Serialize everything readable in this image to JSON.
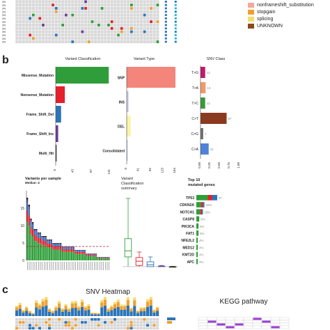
{
  "panels": {
    "a": {
      "letter": ""
    },
    "b": {
      "letter": "b"
    },
    "c": {
      "letter": "c"
    }
  },
  "legend_top": [
    {
      "label": "nonframeshift_substitution",
      "color": "#f4a6a0"
    },
    {
      "label": "stopgain",
      "color": "#f0a030"
    },
    {
      "label": "splicing",
      "color": "#f5dc6e"
    },
    {
      "label": "UNKNOWN",
      "color": "#8b4a1c"
    }
  ],
  "chart_data": [
    {
      "type": "bar",
      "title": "Variant Classification",
      "categories": [
        "Missense_Mutation",
        "Nonsense_Mutation",
        "Frame_Shift_Del",
        "Frame_Shift_Ins",
        "Multi_Hit"
      ],
      "values": [
        128,
        22,
        13,
        6,
        2
      ],
      "colors": [
        "#2f9e3a",
        "#e5202a",
        "#2b74b8",
        "#6d3c96",
        "#111111"
      ],
      "xticks": [
        "0",
        "43",
        "87",
        "131"
      ],
      "xlim": [
        0,
        131
      ]
    },
    {
      "type": "bar",
      "title": "Variant Type",
      "categories": [
        "SNP",
        "INS",
        "DEL",
        "Consolidated"
      ],
      "values": [
        164,
        6,
        13,
        2
      ],
      "colors": [
        "#f4857b",
        "#c7c5e4",
        "#fbf3a5",
        "#bfd8ee"
      ],
      "xticks": [
        "0",
        "41",
        "82",
        "123",
        "164"
      ],
      "xlim": [
        0,
        164
      ]
    },
    {
      "type": "bar",
      "title": "SNV Class",
      "categories": [
        "T>G",
        "T>A",
        "T>C",
        "C>T",
        "C>G",
        "C>A"
      ],
      "values": [
        0.12,
        0.13,
        0.12,
        0.67,
        0.07,
        0.21
      ],
      "value_labels": [
        "12",
        "13",
        "12",
        "67",
        "7",
        "21"
      ],
      "colors": [
        "#c2176e",
        "#f09a6b",
        "#3b9a3b",
        "#8b3a1f",
        "#6f6f6f",
        "#4e82d9"
      ],
      "xticks": [
        "0.00",
        "0.25",
        "0.50",
        "0.75",
        "1.00"
      ],
      "xlim": [
        0,
        1
      ]
    },
    {
      "type": "bar",
      "title": "Variants per sample",
      "subtitle": "Median: 4",
      "yticks": [
        "0",
        "5",
        "10",
        "15"
      ],
      "ylim": [
        0,
        20
      ],
      "median": 4,
      "values": [
        18,
        16,
        12,
        11,
        9,
        9,
        8,
        8,
        7,
        7,
        7,
        6,
        6,
        6,
        5,
        5,
        5,
        5,
        5,
        4,
        4,
        4,
        4,
        4,
        4,
        4,
        3,
        3,
        3,
        3,
        3,
        3,
        2,
        2,
        2,
        2,
        2,
        2,
        1,
        1,
        1,
        1,
        1,
        1,
        1
      ],
      "colors": [
        "#2f9e3a",
        "#e5202a",
        "#2b74b8",
        "#6d3c96",
        "#111111"
      ]
    },
    {
      "type": "box",
      "title": "Variant Classification summary",
      "series": [
        {
          "name": "Missense_Mutation",
          "color": "#2f9e3a",
          "min": 0,
          "q1": 1.6,
          "median": 2.6,
          "q3": 4.6,
          "max": 11.2
        },
        {
          "name": "Nonsense_Mutation",
          "color": "#e5202a",
          "min": 0,
          "q1": 0.2,
          "median": 0.9,
          "q3": 1.5,
          "max": 2.4
        },
        {
          "name": "Frame_Shift_Del",
          "color": "#2b74b8",
          "min": 0,
          "q1": 0,
          "median": 0.3,
          "q3": 0.8,
          "max": 1.6
        },
        {
          "name": "Frame_Shift_Ins",
          "color": "#6d3c96",
          "min": 0,
          "q1": 0,
          "median": 0,
          "q3": 0.1,
          "max": 0.2
        },
        {
          "name": "Multi_Hit",
          "color": "#111111",
          "min": 0,
          "q1": 0,
          "median": 0,
          "q3": 0,
          "max": 0.05
        }
      ]
    },
    {
      "type": "bar",
      "title": "Top 10 mutated genes",
      "categories": [
        "TP53",
        "CDKN2A",
        "NOTCH1",
        "CASP8",
        "PIK3CA",
        "FAT1",
        "NFE2L2",
        "MED12",
        "KMT2D",
        "APC"
      ],
      "values": [
        57,
        22,
        18,
        8,
        6,
        6,
        4,
        4,
        4,
        4
      ],
      "pct_labels": [
        "57",
        "22%",
        "18%",
        "8%",
        "6%",
        "6%",
        "4%",
        "4%",
        "4%",
        "4%"
      ],
      "colors": [
        "#2f9e3a",
        "#e5202a",
        "#2b74b8",
        "#6d3c96"
      ]
    }
  ],
  "heatmap_titles": {
    "snv": "SNV Heatmap",
    "kegg": "KEGG pathway"
  }
}
